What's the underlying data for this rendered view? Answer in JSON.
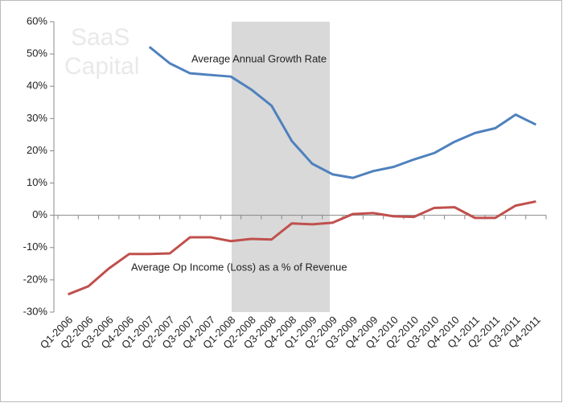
{
  "chart_data": {
    "type": "line",
    "watermark": [
      "SaaS",
      "Capital"
    ],
    "categories": [
      "Q1-2006",
      "Q2-2006",
      "Q3-2006",
      "Q4-2006",
      "Q1-2007",
      "Q2-2007",
      "Q3-2007",
      "Q4-2007",
      "Q1-2008",
      "Q2-2008",
      "Q3-2008",
      "Q4-2008",
      "Q1-2009",
      "Q2-2009",
      "Q3-2009",
      "Q4-2009",
      "Q1-2010",
      "Q2-2010",
      "Q3-2010",
      "Q4-2010",
      "Q1-2011",
      "Q2-2011",
      "Q3-2011",
      "Q4-2011"
    ],
    "series": [
      {
        "name": "Average Annual Growth Rate",
        "color": "#4f81bd",
        "values": [
          null,
          null,
          null,
          null,
          52.2,
          47.1,
          44,
          43.5,
          43,
          39,
          34,
          23,
          16,
          12.7,
          11.6,
          13.7,
          15,
          17.3,
          19.3,
          22.8,
          25.5,
          27,
          31.2,
          28.1
        ]
      },
      {
        "name": "Average Op Income (Loss) as a % of Revenue",
        "color": "#c0504d",
        "values": [
          -24.5,
          -22,
          -16.5,
          -12,
          -12,
          -11.8,
          -6.8,
          -6.8,
          -8,
          -7.3,
          -7.5,
          -2.5,
          -2.8,
          -2.3,
          0.4,
          0.7,
          -0.3,
          -0.5,
          2.3,
          2.5,
          -0.8,
          -0.8,
          3,
          4.3
        ]
      }
    ],
    "ylim": [
      -30,
      60
    ],
    "yticks": [
      {
        "value": -30,
        "label": "-30%"
      },
      {
        "value": -20,
        "label": "-20%"
      },
      {
        "value": -10,
        "label": "-10%"
      },
      {
        "value": 0,
        "label": "0%"
      },
      {
        "value": 10,
        "label": "10%"
      },
      {
        "value": 20,
        "label": "20%"
      },
      {
        "value": 30,
        "label": "30%"
      },
      {
        "value": 40,
        "label": "40%"
      },
      {
        "value": 50,
        "label": "50%"
      },
      {
        "value": 60,
        "label": "60%"
      }
    ],
    "grid": false
  }
}
